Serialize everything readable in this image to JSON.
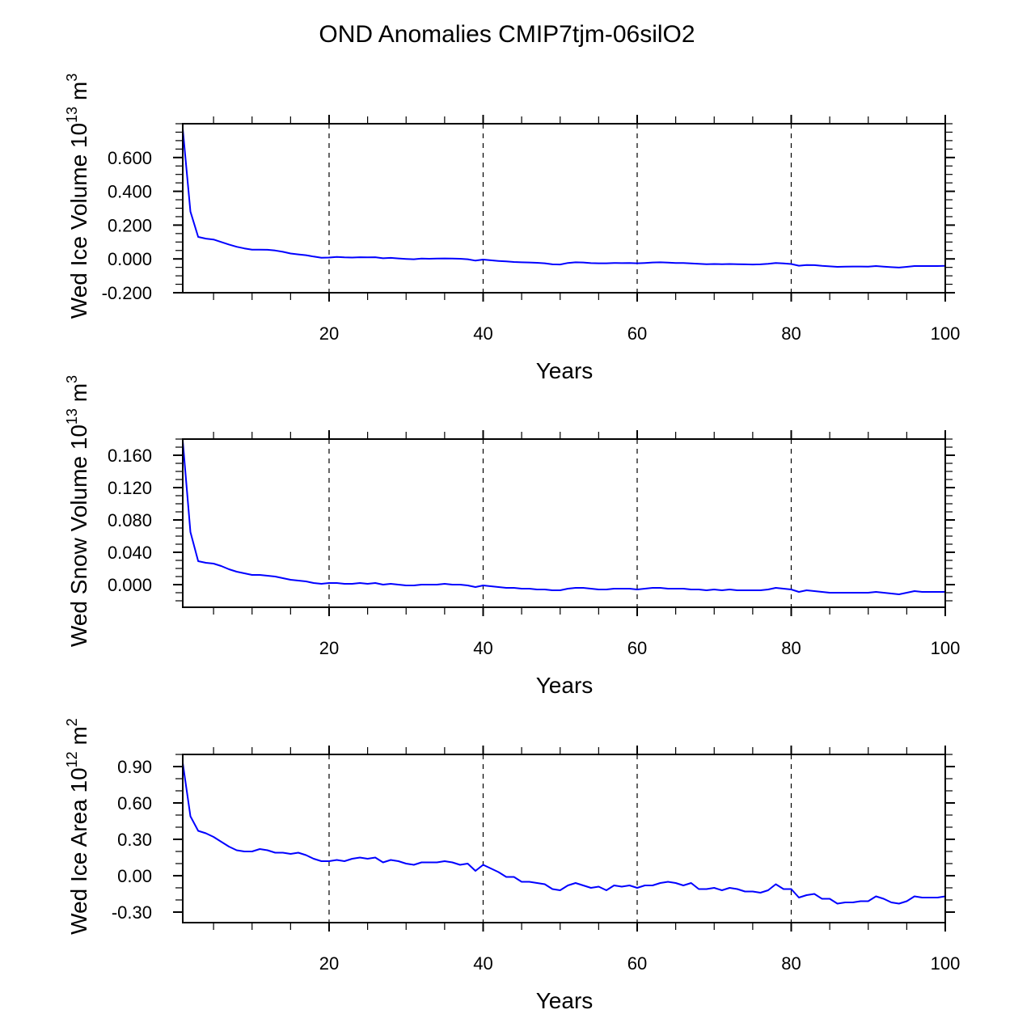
{
  "chart_data": {
    "title": "OND Anomalies CMIP7tjm-06silO2",
    "type": "line",
    "line_color": "#0000ff",
    "x": {
      "start": 1,
      "end": 100,
      "step": 1
    },
    "panels": [
      {
        "type": "line",
        "ylabel_main": "Wed Ice Volume 10",
        "ylabel_exp": "13",
        "ylabel_unit": " m",
        "ylabel_unit_exp": "3",
        "xlabel": "Years",
        "xlim": [
          1,
          100
        ],
        "ylim": [
          -0.2,
          0.8
        ],
        "yticks": [
          -0.2,
          0.0,
          0.2,
          0.4,
          0.6
        ],
        "ytick_labels": [
          "-0.200",
          "0.000",
          "0.200",
          "0.400",
          "0.600"
        ],
        "yminor": 0.05,
        "xticks": [
          20,
          40,
          60,
          80,
          100
        ],
        "xtick_labels": [
          "20",
          "40",
          "60",
          "80",
          "100"
        ],
        "grid_x": [
          20,
          40,
          60,
          80
        ],
        "values": [
          0.77,
          0.28,
          0.13,
          0.12,
          0.115,
          0.1,
          0.085,
          0.072,
          0.062,
          0.055,
          0.055,
          0.054,
          0.05,
          0.042,
          0.032,
          0.027,
          0.022,
          0.014,
          0.007,
          0.008,
          0.012,
          0.009,
          0.008,
          0.01,
          0.009,
          0.01,
          0.004,
          0.006,
          0.003,
          0.0,
          -0.002,
          0.002,
          0.001,
          0.002,
          0.003,
          0.002,
          0.001,
          -0.002,
          -0.01,
          -0.004,
          -0.008,
          -0.012,
          -0.015,
          -0.018,
          -0.02,
          -0.021,
          -0.023,
          -0.026,
          -0.032,
          -0.033,
          -0.024,
          -0.02,
          -0.021,
          -0.025,
          -0.026,
          -0.026,
          -0.024,
          -0.025,
          -0.024,
          -0.026,
          -0.024,
          -0.021,
          -0.02,
          -0.022,
          -0.024,
          -0.024,
          -0.027,
          -0.029,
          -0.031,
          -0.03,
          -0.031,
          -0.03,
          -0.031,
          -0.032,
          -0.033,
          -0.032,
          -0.029,
          -0.024,
          -0.027,
          -0.03,
          -0.04,
          -0.036,
          -0.037,
          -0.041,
          -0.044,
          -0.047,
          -0.046,
          -0.045,
          -0.045,
          -0.046,
          -0.042,
          -0.046,
          -0.049,
          -0.051,
          -0.047,
          -0.042,
          -0.042,
          -0.042,
          -0.042,
          -0.041
        ]
      },
      {
        "type": "line",
        "ylabel_main": "Wed Snow Volume 10",
        "ylabel_exp": "13",
        "ylabel_unit": " m",
        "ylabel_unit_exp": "3",
        "xlabel": "Years",
        "xlim": [
          1,
          100
        ],
        "ylim": [
          -0.028,
          0.18
        ],
        "yticks": [
          0.0,
          0.04,
          0.08,
          0.12,
          0.16
        ],
        "ytick_labels": [
          "0.000",
          "0.040",
          "0.080",
          "0.120",
          "0.160"
        ],
        "yminor": 0.01,
        "xticks": [
          20,
          40,
          60,
          80,
          100
        ],
        "xtick_labels": [
          "20",
          "40",
          "60",
          "80",
          "100"
        ],
        "grid_x": [
          20,
          40,
          60,
          80
        ],
        "values": [
          0.178,
          0.065,
          0.029,
          0.027,
          0.026,
          0.023,
          0.019,
          0.016,
          0.014,
          0.012,
          0.012,
          0.011,
          0.01,
          0.008,
          0.006,
          0.005,
          0.004,
          0.002,
          0.001,
          0.002,
          0.002,
          0.001,
          0.001,
          0.002,
          0.001,
          0.002,
          0.0,
          0.001,
          0.0,
          -0.001,
          -0.001,
          0.0,
          0.0,
          0.0,
          0.001,
          0.0,
          0.0,
          -0.001,
          -0.003,
          -0.001,
          -0.002,
          -0.003,
          -0.004,
          -0.004,
          -0.005,
          -0.005,
          -0.006,
          -0.006,
          -0.007,
          -0.007,
          -0.005,
          -0.004,
          -0.004,
          -0.005,
          -0.006,
          -0.006,
          -0.005,
          -0.005,
          -0.005,
          -0.006,
          -0.005,
          -0.004,
          -0.004,
          -0.005,
          -0.005,
          -0.005,
          -0.006,
          -0.006,
          -0.007,
          -0.006,
          -0.007,
          -0.006,
          -0.007,
          -0.007,
          -0.007,
          -0.007,
          -0.006,
          -0.004,
          -0.005,
          -0.006,
          -0.009,
          -0.007,
          -0.008,
          -0.009,
          -0.01,
          -0.01,
          -0.01,
          -0.01,
          -0.01,
          -0.01,
          -0.009,
          -0.01,
          -0.011,
          -0.012,
          -0.01,
          -0.008,
          -0.009,
          -0.009,
          -0.009,
          -0.009
        ]
      },
      {
        "type": "line",
        "ylabel_main": "Wed Ice Area 10",
        "ylabel_exp": "12",
        "ylabel_unit": " m",
        "ylabel_unit_exp": "2",
        "xlabel": "Years",
        "xlim": [
          1,
          100
        ],
        "ylim": [
          -0.387,
          1.0
        ],
        "yticks": [
          -0.3,
          0.0,
          0.3,
          0.6,
          0.9
        ],
        "ytick_labels": [
          "-0.30",
          "0.00",
          "0.30",
          "0.60",
          "0.90"
        ],
        "yminor": 0.1,
        "xticks": [
          20,
          40,
          60,
          80,
          100
        ],
        "xtick_labels": [
          "20",
          "40",
          "60",
          "80",
          "100"
        ],
        "grid_x": [
          20,
          40,
          60,
          80
        ],
        "values": [
          0.93,
          0.49,
          0.37,
          0.35,
          0.32,
          0.28,
          0.24,
          0.21,
          0.2,
          0.2,
          0.22,
          0.21,
          0.19,
          0.19,
          0.18,
          0.19,
          0.17,
          0.14,
          0.12,
          0.12,
          0.13,
          0.12,
          0.14,
          0.15,
          0.14,
          0.15,
          0.11,
          0.13,
          0.12,
          0.1,
          0.09,
          0.11,
          0.11,
          0.11,
          0.12,
          0.11,
          0.09,
          0.1,
          0.04,
          0.09,
          0.06,
          0.03,
          -0.01,
          -0.01,
          -0.05,
          -0.05,
          -0.06,
          -0.07,
          -0.11,
          -0.12,
          -0.08,
          -0.06,
          -0.08,
          -0.1,
          -0.09,
          -0.12,
          -0.08,
          -0.09,
          -0.08,
          -0.1,
          -0.08,
          -0.08,
          -0.06,
          -0.05,
          -0.06,
          -0.08,
          -0.06,
          -0.11,
          -0.11,
          -0.1,
          -0.12,
          -0.1,
          -0.11,
          -0.13,
          -0.13,
          -0.14,
          -0.12,
          -0.07,
          -0.11,
          -0.11,
          -0.18,
          -0.16,
          -0.15,
          -0.19,
          -0.19,
          -0.23,
          -0.22,
          -0.22,
          -0.21,
          -0.21,
          -0.17,
          -0.19,
          -0.22,
          -0.23,
          -0.21,
          -0.17,
          -0.18,
          -0.18,
          -0.18,
          -0.17
        ]
      }
    ]
  }
}
